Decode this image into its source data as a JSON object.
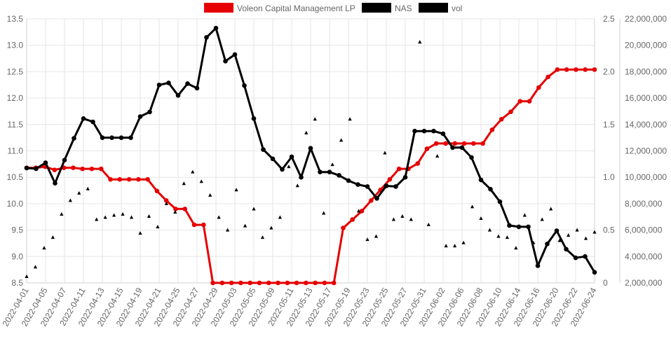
{
  "chart_data": {
    "type": "line",
    "title": "",
    "legend": {
      "placement": "top-center",
      "entries": [
        {
          "label": "Voleon Capital Management LP",
          "color": "#e60000"
        },
        {
          "label": "NAS",
          "color": "#000000"
        },
        {
          "label": "vol",
          "color": "#000000"
        }
      ]
    },
    "grid": true,
    "axes": {
      "left": {
        "ticks": [
          "8.5",
          "9.0",
          "9.5",
          "10.0",
          "10.5",
          "11.0",
          "11.5",
          "12.0",
          "12.5",
          "13.0",
          "13.5"
        ],
        "range": [
          8.5,
          13.5
        ]
      },
      "right1": {
        "ticks": [
          "0",
          "0.5",
          "1.0",
          "1.5",
          "2.0",
          "2.5"
        ],
        "range": [
          0,
          2.5
        ]
      },
      "right2": {
        "ticks": [
          "2,000,000",
          "4,000,000",
          "6,000,000",
          "8,000,000",
          "10,000,000",
          "12,000,000",
          "14,000,000",
          "16,000,000",
          "18,000,000",
          "20,000,000",
          "22,000,000"
        ],
        "range": [
          2000000,
          22000000
        ]
      },
      "x_ticks": [
        "2022-04-01",
        "2022-04-05",
        "2022-04-07",
        "2022-04-11",
        "2022-04-13",
        "2022-04-15",
        "2022-04-19",
        "2022-04-21",
        "2022-04-25",
        "2022-04-27",
        "2022-04-29",
        "2022-05-03",
        "2022-05-05",
        "2022-05-09",
        "2022-05-11",
        "2022-05-13",
        "2022-05-17",
        "2022-05-19",
        "2022-05-23",
        "2022-05-25",
        "2022-05-27",
        "2022-05-31",
        "2022-06-02",
        "2022-06-06",
        "2022-06-08",
        "2022-06-10",
        "2022-06-14",
        "2022-06-16",
        "2022-06-20",
        "2022-06-22",
        "2022-06-24"
      ]
    },
    "series": [
      {
        "name": "Voleon Capital Management LP",
        "color": "#e60000",
        "axis": "right1",
        "values": [
          1.09,
          1.09,
          1.1,
          1.07,
          1.09,
          1.09,
          1.08,
          1.08,
          1.08,
          0.98,
          0.98,
          0.98,
          0.98,
          0.98,
          0.87,
          0.78,
          0.7,
          0.7,
          0.55,
          0.55,
          0,
          0,
          0,
          0,
          0,
          0,
          0,
          0,
          0,
          0,
          0,
          0,
          0,
          0,
          0.52,
          0.6,
          0.68,
          0.78,
          0.88,
          0.98,
          1.08,
          1.08,
          1.13,
          1.27,
          1.32,
          1.32,
          1.32,
          1.32,
          1.32,
          1.32,
          1.45,
          1.55,
          1.62,
          1.72,
          1.72,
          1.85,
          1.95,
          2.02,
          2.02,
          2.02,
          2.02,
          2.02
        ]
      },
      {
        "name": "NAS",
        "color": "#000000",
        "axis": "right2",
        "values": [
          10700000,
          10650000,
          11100000,
          9550000,
          11300000,
          12950000,
          14450000,
          14200000,
          13000000,
          13000000,
          13000000,
          13000000,
          14600000,
          14950000,
          17000000,
          17150000,
          16200000,
          17100000,
          16750000,
          20600000,
          21300000,
          18800000,
          19300000,
          16950000,
          14450000,
          12100000,
          11400000,
          10600000,
          11550000,
          10000000,
          12200000,
          10400000,
          10400000,
          10150000,
          9750000,
          9450000,
          9300000,
          8400000,
          9350000,
          9300000,
          10000000,
          13500000,
          13500000,
          13500000,
          13300000,
          12250000,
          12250000,
          11500000,
          9800000,
          9100000,
          8150000,
          6350000,
          6250000,
          6250000,
          3300000,
          4950000,
          5950000,
          4550000,
          3900000,
          4000000,
          2800000
        ]
      },
      {
        "name": "vol",
        "color": "#000000",
        "axis": "right1",
        "values": [
          0.06,
          0.15,
          0.33,
          0.43,
          0.65,
          0.78,
          0.85,
          0.89,
          0.6,
          0.62,
          0.64,
          0.65,
          0.62,
          0.47,
          0.63,
          0.53,
          0.75,
          0.67,
          0.94,
          1.05,
          0.96,
          0.83,
          0.62,
          0.5,
          0.88,
          0.54,
          0.7,
          0.43,
          0.52,
          0.62,
          1.1,
          0.92,
          1.42,
          1.55,
          0.66,
          1.12,
          1.35,
          1.55,
          0.68,
          0.41,
          0.44,
          1.23,
          0.6,
          0.63,
          0.6,
          2.28,
          0.55,
          1.2,
          0.35,
          0.35,
          0.38,
          0.72,
          0.61,
          0.5,
          0.44,
          0.43,
          0.33,
          0.64,
          0.38,
          0.6,
          0.7,
          0.4,
          0.45,
          0.5,
          0.42,
          0.48
        ]
      }
    ]
  }
}
